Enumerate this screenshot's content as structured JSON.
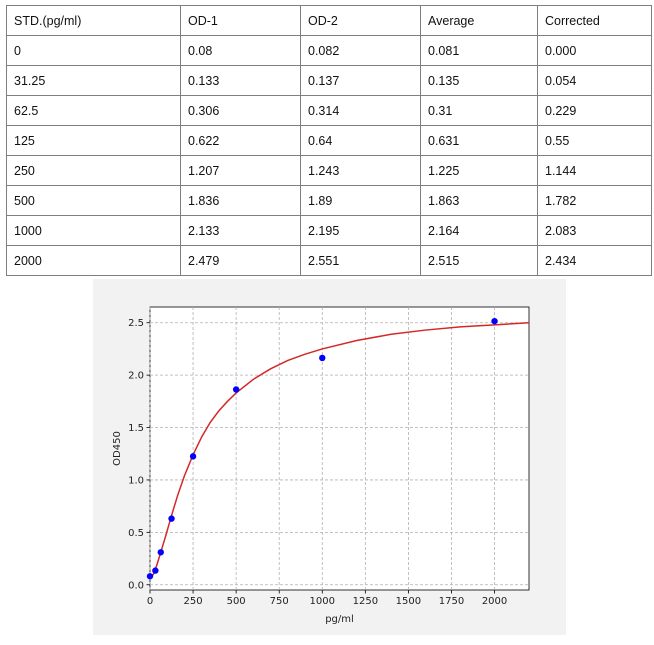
{
  "table": {
    "headers": [
      "STD.(pg/ml)",
      "OD-1",
      "OD-2",
      "Average",
      "Corrected"
    ],
    "rows": [
      [
        "0",
        "0.08",
        "0.082",
        "0.081",
        "0.000"
      ],
      [
        "31.25",
        "0.133",
        "0.137",
        "0.135",
        "0.054"
      ],
      [
        "62.5",
        "0.306",
        "0.314",
        "0.31",
        "0.229"
      ],
      [
        "125",
        "0.622",
        "0.64",
        "0.631",
        "0.55"
      ],
      [
        "250",
        "1.207",
        "1.243",
        "1.225",
        "1.144"
      ],
      [
        "500",
        "1.836",
        "1.89",
        "1.863",
        "1.782"
      ],
      [
        "1000",
        "2.133",
        "2.195",
        "2.164",
        "2.083"
      ],
      [
        "2000",
        "2.479",
        "2.551",
        "2.515",
        "2.434"
      ]
    ]
  },
  "chart_data": {
    "type": "scatter",
    "title": "",
    "xlabel": "pg/ml",
    "ylabel": "OD450",
    "xlim": [
      0,
      2200
    ],
    "ylim": [
      -0.05,
      2.65
    ],
    "x_ticks": [
      0,
      250,
      500,
      750,
      1000,
      1250,
      1500,
      1750,
      2000
    ],
    "y_ticks": [
      "0.0",
      "0.5",
      "1.0",
      "1.5",
      "2.0",
      "2.5"
    ],
    "grid": true,
    "series": [
      {
        "kind": "points",
        "color": "#0000ff",
        "x": [
          0,
          31.25,
          62.5,
          125,
          250,
          500,
          1000,
          2000
        ],
        "y": [
          0.081,
          0.135,
          0.31,
          0.631,
          1.225,
          1.863,
          2.164,
          2.515
        ]
      },
      {
        "kind": "fit-curve",
        "color": "#d62728",
        "x": [
          0,
          20,
          40,
          62.5,
          90,
          125,
          160,
          200,
          250,
          300,
          350,
          400,
          450,
          500,
          600,
          700,
          800,
          900,
          1000,
          1200,
          1400,
          1600,
          1800,
          2000,
          2200
        ],
        "y": [
          0.06,
          0.1,
          0.19,
          0.31,
          0.46,
          0.66,
          0.85,
          1.04,
          1.24,
          1.41,
          1.55,
          1.66,
          1.75,
          1.83,
          1.96,
          2.06,
          2.14,
          2.2,
          2.25,
          2.33,
          2.39,
          2.43,
          2.46,
          2.48,
          2.5
        ]
      }
    ]
  }
}
